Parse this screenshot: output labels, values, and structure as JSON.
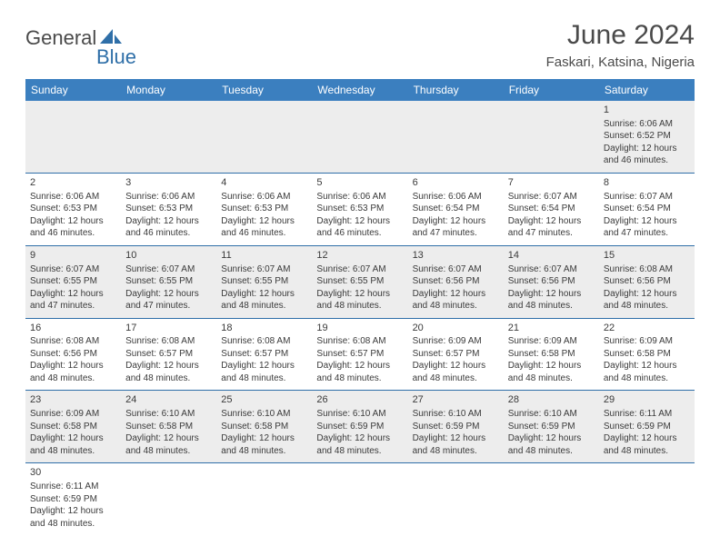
{
  "logo": {
    "main": "General",
    "sub": "Blue"
  },
  "title": "June 2024",
  "location": "Faskari, Katsina, Nigeria",
  "colors": {
    "header_bg": "#3b7fbf",
    "header_text": "#ffffff",
    "accent": "#2f6fa8",
    "gray_row": "#ededed",
    "text": "#3a3a3a",
    "title_text": "#4a4a4a",
    "border": "#2f6fa8"
  },
  "weekdays": [
    "Sunday",
    "Monday",
    "Tuesday",
    "Wednesday",
    "Thursday",
    "Friday",
    "Saturday"
  ],
  "weeks": [
    [
      null,
      null,
      null,
      null,
      null,
      null,
      {
        "n": "1",
        "sunrise": "Sunrise: 6:06 AM",
        "sunset": "Sunset: 6:52 PM",
        "daylight1": "Daylight: 12 hours",
        "daylight2": "and 46 minutes."
      }
    ],
    [
      {
        "n": "2",
        "sunrise": "Sunrise: 6:06 AM",
        "sunset": "Sunset: 6:53 PM",
        "daylight1": "Daylight: 12 hours",
        "daylight2": "and 46 minutes."
      },
      {
        "n": "3",
        "sunrise": "Sunrise: 6:06 AM",
        "sunset": "Sunset: 6:53 PM",
        "daylight1": "Daylight: 12 hours",
        "daylight2": "and 46 minutes."
      },
      {
        "n": "4",
        "sunrise": "Sunrise: 6:06 AM",
        "sunset": "Sunset: 6:53 PM",
        "daylight1": "Daylight: 12 hours",
        "daylight2": "and 46 minutes."
      },
      {
        "n": "5",
        "sunrise": "Sunrise: 6:06 AM",
        "sunset": "Sunset: 6:53 PM",
        "daylight1": "Daylight: 12 hours",
        "daylight2": "and 46 minutes."
      },
      {
        "n": "6",
        "sunrise": "Sunrise: 6:06 AM",
        "sunset": "Sunset: 6:54 PM",
        "daylight1": "Daylight: 12 hours",
        "daylight2": "and 47 minutes."
      },
      {
        "n": "7",
        "sunrise": "Sunrise: 6:07 AM",
        "sunset": "Sunset: 6:54 PM",
        "daylight1": "Daylight: 12 hours",
        "daylight2": "and 47 minutes."
      },
      {
        "n": "8",
        "sunrise": "Sunrise: 6:07 AM",
        "sunset": "Sunset: 6:54 PM",
        "daylight1": "Daylight: 12 hours",
        "daylight2": "and 47 minutes."
      }
    ],
    [
      {
        "n": "9",
        "sunrise": "Sunrise: 6:07 AM",
        "sunset": "Sunset: 6:55 PM",
        "daylight1": "Daylight: 12 hours",
        "daylight2": "and 47 minutes."
      },
      {
        "n": "10",
        "sunrise": "Sunrise: 6:07 AM",
        "sunset": "Sunset: 6:55 PM",
        "daylight1": "Daylight: 12 hours",
        "daylight2": "and 47 minutes."
      },
      {
        "n": "11",
        "sunrise": "Sunrise: 6:07 AM",
        "sunset": "Sunset: 6:55 PM",
        "daylight1": "Daylight: 12 hours",
        "daylight2": "and 48 minutes."
      },
      {
        "n": "12",
        "sunrise": "Sunrise: 6:07 AM",
        "sunset": "Sunset: 6:55 PM",
        "daylight1": "Daylight: 12 hours",
        "daylight2": "and 48 minutes."
      },
      {
        "n": "13",
        "sunrise": "Sunrise: 6:07 AM",
        "sunset": "Sunset: 6:56 PM",
        "daylight1": "Daylight: 12 hours",
        "daylight2": "and 48 minutes."
      },
      {
        "n": "14",
        "sunrise": "Sunrise: 6:07 AM",
        "sunset": "Sunset: 6:56 PM",
        "daylight1": "Daylight: 12 hours",
        "daylight2": "and 48 minutes."
      },
      {
        "n": "15",
        "sunrise": "Sunrise: 6:08 AM",
        "sunset": "Sunset: 6:56 PM",
        "daylight1": "Daylight: 12 hours",
        "daylight2": "and 48 minutes."
      }
    ],
    [
      {
        "n": "16",
        "sunrise": "Sunrise: 6:08 AM",
        "sunset": "Sunset: 6:56 PM",
        "daylight1": "Daylight: 12 hours",
        "daylight2": "and 48 minutes."
      },
      {
        "n": "17",
        "sunrise": "Sunrise: 6:08 AM",
        "sunset": "Sunset: 6:57 PM",
        "daylight1": "Daylight: 12 hours",
        "daylight2": "and 48 minutes."
      },
      {
        "n": "18",
        "sunrise": "Sunrise: 6:08 AM",
        "sunset": "Sunset: 6:57 PM",
        "daylight1": "Daylight: 12 hours",
        "daylight2": "and 48 minutes."
      },
      {
        "n": "19",
        "sunrise": "Sunrise: 6:08 AM",
        "sunset": "Sunset: 6:57 PM",
        "daylight1": "Daylight: 12 hours",
        "daylight2": "and 48 minutes."
      },
      {
        "n": "20",
        "sunrise": "Sunrise: 6:09 AM",
        "sunset": "Sunset: 6:57 PM",
        "daylight1": "Daylight: 12 hours",
        "daylight2": "and 48 minutes."
      },
      {
        "n": "21",
        "sunrise": "Sunrise: 6:09 AM",
        "sunset": "Sunset: 6:58 PM",
        "daylight1": "Daylight: 12 hours",
        "daylight2": "and 48 minutes."
      },
      {
        "n": "22",
        "sunrise": "Sunrise: 6:09 AM",
        "sunset": "Sunset: 6:58 PM",
        "daylight1": "Daylight: 12 hours",
        "daylight2": "and 48 minutes."
      }
    ],
    [
      {
        "n": "23",
        "sunrise": "Sunrise: 6:09 AM",
        "sunset": "Sunset: 6:58 PM",
        "daylight1": "Daylight: 12 hours",
        "daylight2": "and 48 minutes."
      },
      {
        "n": "24",
        "sunrise": "Sunrise: 6:10 AM",
        "sunset": "Sunset: 6:58 PM",
        "daylight1": "Daylight: 12 hours",
        "daylight2": "and 48 minutes."
      },
      {
        "n": "25",
        "sunrise": "Sunrise: 6:10 AM",
        "sunset": "Sunset: 6:58 PM",
        "daylight1": "Daylight: 12 hours",
        "daylight2": "and 48 minutes."
      },
      {
        "n": "26",
        "sunrise": "Sunrise: 6:10 AM",
        "sunset": "Sunset: 6:59 PM",
        "daylight1": "Daylight: 12 hours",
        "daylight2": "and 48 minutes."
      },
      {
        "n": "27",
        "sunrise": "Sunrise: 6:10 AM",
        "sunset": "Sunset: 6:59 PM",
        "daylight1": "Daylight: 12 hours",
        "daylight2": "and 48 minutes."
      },
      {
        "n": "28",
        "sunrise": "Sunrise: 6:10 AM",
        "sunset": "Sunset: 6:59 PM",
        "daylight1": "Daylight: 12 hours",
        "daylight2": "and 48 minutes."
      },
      {
        "n": "29",
        "sunrise": "Sunrise: 6:11 AM",
        "sunset": "Sunset: 6:59 PM",
        "daylight1": "Daylight: 12 hours",
        "daylight2": "and 48 minutes."
      }
    ],
    [
      {
        "n": "30",
        "sunrise": "Sunrise: 6:11 AM",
        "sunset": "Sunset: 6:59 PM",
        "daylight1": "Daylight: 12 hours",
        "daylight2": "and 48 minutes."
      },
      null,
      null,
      null,
      null,
      null,
      null
    ]
  ],
  "row_bg": [
    "gray",
    "white",
    "gray",
    "white",
    "gray",
    "white"
  ]
}
